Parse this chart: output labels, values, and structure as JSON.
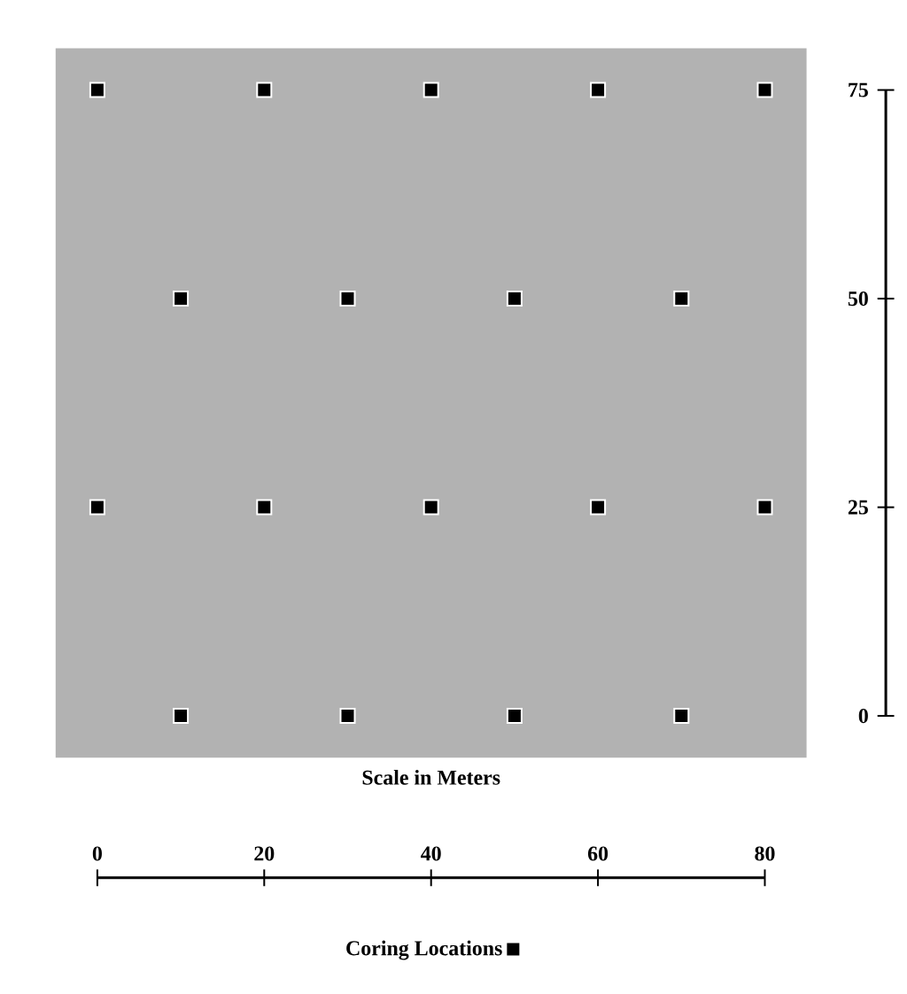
{
  "chart_data": {
    "type": "scatter",
    "xlabel": "Scale in Meters",
    "series": [
      {
        "name": "Coring Locations",
        "color": "#000000",
        "x": [
          0,
          20,
          40,
          60,
          80,
          10,
          30,
          50,
          70,
          0,
          20,
          40,
          60,
          80,
          10,
          30,
          50,
          70
        ],
        "values": [
          75,
          75,
          75,
          75,
          75,
          50,
          50,
          50,
          50,
          25,
          25,
          25,
          25,
          25,
          0,
          0,
          0,
          0
        ]
      }
    ],
    "xlim": [
      -5,
      85
    ],
    "ylim": [
      -5,
      80
    ],
    "xticks": [
      0,
      20,
      40,
      60,
      80
    ],
    "yticks": [
      0,
      25,
      50,
      75
    ],
    "marker": "square",
    "legend": "bottom"
  }
}
